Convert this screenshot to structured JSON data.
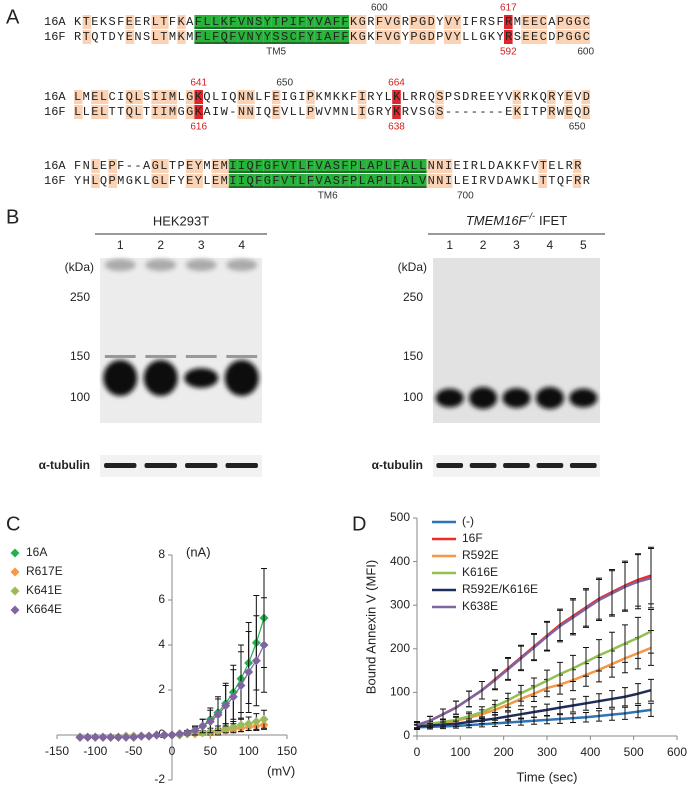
{
  "panel_a": {
    "label": "A",
    "rows": [
      {
        "sequences": [
          {
            "name": "16A",
            "sequence": "KTEKSFEERLTFKAFLLKFVNSYTPIFYVAFFKGRFVGRPGDYVYIFRSFRMEECAPGGC"
          },
          {
            "name": "16F",
            "sequence": "RTQTDYENSLTMKMFLFQFVNYYSSCFYIAFFKGKFVGYPGDPVYLLGKYRSEECDPGGC"
          }
        ],
        "above": [
          "600",
          "617"
        ],
        "below": [
          "TM5",
          "592",
          "600"
        ]
      },
      {
        "sequences": [
          {
            "name": "16A",
            "sequence": "LMELCIQLSIIMLGKQLIQNNLFEIGIPKMKKFIRYLKLRRQSPSDREEYVKRKQRYEVD"
          },
          {
            "name": "16F",
            "sequence": "LLELTTQLTIIMGGKAIW-NNIQEVLLPWVMNLIGRYKRVSGS-------EKITPRWEQD"
          }
        ],
        "above": [
          "641",
          "650",
          "664"
        ],
        "below": [
          "616",
          "638",
          "650"
        ]
      },
      {
        "sequences": [
          {
            "name": "16A",
            "sequence": "FNLEPF--AGLTPEYMEMIIQFGFVTLFVASFPLAPLFALLNNIEIRLDAKKFVTELRR"
          },
          {
            "name": "16F",
            "sequence": "YHLQPMGKLGLFYEYLEMIIQFGFVTLFVASFPLAPLLALVNNILEIRVDAWKLTTQFRR"
          }
        ],
        "above": [],
        "below": [
          "TM6",
          "700"
        ]
      }
    ]
  },
  "panel_b": {
    "label": "B",
    "blots": [
      {
        "title": "HEK293T",
        "lanes": [
          "1",
          "2",
          "3",
          "4"
        ],
        "unit": "(kDa)",
        "markers": [
          "250",
          "150",
          "100"
        ],
        "loading_control": "α-tubulin"
      },
      {
        "title_gene": "TMEM16F",
        "title_superscript": "-/-",
        "title_rest": "IFET",
        "lanes": [
          "1",
          "2",
          "3",
          "4",
          "5"
        ],
        "unit": "(kDa)",
        "markers": [
          "250",
          "150",
          "100"
        ],
        "loading_control": "α-tubulin"
      }
    ]
  },
  "chart_data": [
    {
      "type": "line",
      "label": "C",
      "x_label": "(mV)",
      "y_label": "(nA)",
      "marker": "diamond",
      "legend": "upper left",
      "grid": false,
      "xlim": [
        -150,
        150
      ],
      "xticks": [
        -150,
        -100,
        -50,
        0,
        50,
        100,
        150
      ],
      "ylim": [
        -2,
        8
      ],
      "yticks": [
        -2,
        0,
        2,
        4,
        6,
        8
      ],
      "x": [
        -120,
        -110,
        -100,
        -90,
        -80,
        -70,
        -60,
        -50,
        -40,
        -30,
        -20,
        -10,
        0,
        10,
        20,
        30,
        40,
        50,
        60,
        70,
        80,
        90,
        100,
        110,
        120
      ],
      "series": [
        {
          "name": "16A",
          "color": "#22b14c",
          "values": [
            -0.1,
            -0.1,
            -0.1,
            -0.1,
            -0.1,
            -0.1,
            -0.1,
            -0.1,
            -0.05,
            -0.05,
            0,
            0,
            0,
            0.05,
            0.1,
            0.2,
            0.4,
            0.7,
            1.0,
            1.4,
            1.9,
            2.5,
            3.2,
            4.1,
            5.2
          ],
          "errors": [
            0.05,
            0.05,
            0.05,
            0.05,
            0.05,
            0.05,
            0.05,
            0.05,
            0.05,
            0.05,
            0.05,
            0.05,
            0.05,
            0.05,
            0.1,
            0.15,
            0.3,
            0.5,
            0.7,
            0.9,
            1.2,
            1.5,
            1.8,
            2.1,
            2.2
          ]
        },
        {
          "name": "R617E",
          "color": "#f79646",
          "values": [
            -0.1,
            -0.1,
            -0.1,
            -0.1,
            -0.1,
            -0.1,
            -0.05,
            -0.05,
            -0.05,
            -0.05,
            0,
            0,
            0,
            0,
            0.05,
            0.05,
            0.1,
            0.1,
            0.15,
            0.2,
            0.25,
            0.3,
            0.35,
            0.4,
            0.45
          ],
          "errors": [
            0.05,
            0.05,
            0.05,
            0.05,
            0.05,
            0.05,
            0.05,
            0.05,
            0.05,
            0.05,
            0.05,
            0.05,
            0.05,
            0.05,
            0.05,
            0.05,
            0.05,
            0.1,
            0.1,
            0.1,
            0.1,
            0.15,
            0.15,
            0.2,
            0.2
          ]
        },
        {
          "name": "K641E",
          "color": "#9bbb59",
          "values": [
            -0.1,
            -0.1,
            -0.1,
            -0.1,
            -0.1,
            -0.1,
            -0.05,
            -0.05,
            -0.05,
            -0.05,
            0,
            0,
            0,
            0,
            0.05,
            0.1,
            0.1,
            0.15,
            0.2,
            0.3,
            0.35,
            0.45,
            0.5,
            0.6,
            0.7
          ],
          "errors": [
            0.05,
            0.05,
            0.05,
            0.05,
            0.05,
            0.05,
            0.05,
            0.05,
            0.05,
            0.05,
            0.05,
            0.05,
            0.05,
            0.05,
            0.05,
            0.1,
            0.1,
            0.15,
            0.2,
            0.2,
            0.25,
            0.3,
            0.3,
            0.35,
            0.4
          ]
        },
        {
          "name": "K664E",
          "color": "#8064a2",
          "values": [
            -0.1,
            -0.1,
            -0.1,
            -0.1,
            -0.1,
            -0.1,
            -0.1,
            -0.1,
            -0.05,
            -0.05,
            0,
            0,
            0,
            0.05,
            0.1,
            0.2,
            0.4,
            0.6,
            0.9,
            1.3,
            1.7,
            2.2,
            2.8,
            3.3,
            4.0
          ],
          "errors": [
            0.05,
            0.05,
            0.05,
            0.05,
            0.05,
            0.05,
            0.05,
            0.05,
            0.05,
            0.05,
            0.05,
            0.05,
            0.05,
            0.05,
            0.1,
            0.2,
            0.3,
            0.5,
            0.7,
            0.9,
            1.2,
            1.5,
            1.8,
            2.0,
            2.1
          ]
        }
      ]
    },
    {
      "type": "line",
      "label": "D",
      "x_label": "Time (sec)",
      "y_label": "Bound Annexin V (MFI)",
      "legend": "upper left",
      "grid": false,
      "xlim": [
        0,
        600
      ],
      "xticks": [
        0,
        100,
        200,
        300,
        400,
        500,
        600
      ],
      "ylim": [
        0,
        500
      ],
      "yticks": [
        0,
        100,
        200,
        300,
        400,
        500
      ],
      "x": [
        0,
        30,
        60,
        90,
        120,
        150,
        180,
        210,
        240,
        270,
        300,
        330,
        360,
        390,
        420,
        450,
        480,
        510,
        540
      ],
      "series": [
        {
          "name": "(-)",
          "color": "#2e75b6",
          "values": [
            20,
            21,
            22,
            23,
            25,
            27,
            29,
            31,
            33,
            35,
            37,
            39,
            41,
            43,
            46,
            49,
            52,
            56,
            60
          ],
          "errors": [
            5,
            5,
            5,
            5,
            6,
            6,
            7,
            7,
            8,
            8,
            9,
            10,
            10,
            11,
            12,
            13,
            14,
            14,
            15
          ]
        },
        {
          "name": "16F",
          "color": "#ee2a24",
          "values": [
            25,
            35,
            50,
            65,
            85,
            105,
            130,
            155,
            180,
            205,
            230,
            255,
            275,
            295,
            315,
            330,
            345,
            358,
            368
          ],
          "errors": [
            8,
            10,
            12,
            15,
            18,
            20,
            22,
            25,
            28,
            30,
            33,
            36,
            40,
            43,
            47,
            52,
            56,
            60,
            65
          ]
        },
        {
          "name": "R592E",
          "color": "#f79646",
          "values": [
            25,
            27,
            30,
            35,
            42,
            50,
            60,
            72,
            85,
            97,
            110,
            118,
            128,
            140,
            152,
            165,
            178,
            190,
            202
          ],
          "errors": [
            6,
            6,
            7,
            8,
            9,
            10,
            12,
            14,
            16,
            18,
            20,
            22,
            24,
            26,
            28,
            30,
            33,
            36,
            40
          ]
        },
        {
          "name": "K616E",
          "color": "#92c050",
          "values": [
            25,
            28,
            32,
            37,
            45,
            55,
            68,
            82,
            98,
            112,
            127,
            142,
            155,
            170,
            185,
            198,
            212,
            225,
            240
          ],
          "errors": [
            6,
            6,
            7,
            8,
            10,
            12,
            14,
            16,
            18,
            21,
            24,
            27,
            30,
            33,
            36,
            40,
            43,
            47,
            50
          ]
        },
        {
          "name": "R592E/K616E",
          "color": "#1f2d5a",
          "values": [
            22,
            24,
            26,
            28,
            32,
            36,
            40,
            45,
            50,
            55,
            60,
            65,
            70,
            75,
            80,
            85,
            90,
            97,
            105
          ],
          "errors": [
            5,
            5,
            6,
            6,
            7,
            8,
            9,
            10,
            11,
            12,
            13,
            14,
            15,
            16,
            17,
            19,
            21,
            23,
            25
          ]
        },
        {
          "name": "K638E",
          "color": "#8064a2",
          "values": [
            25,
            35,
            50,
            65,
            85,
            105,
            128,
            153,
            178,
            203,
            228,
            252,
            272,
            292,
            312,
            327,
            342,
            354,
            362
          ],
          "errors": [
            8,
            10,
            12,
            15,
            18,
            20,
            22,
            25,
            28,
            30,
            33,
            36,
            40,
            43,
            47,
            52,
            56,
            62,
            68
          ]
        }
      ]
    }
  ]
}
